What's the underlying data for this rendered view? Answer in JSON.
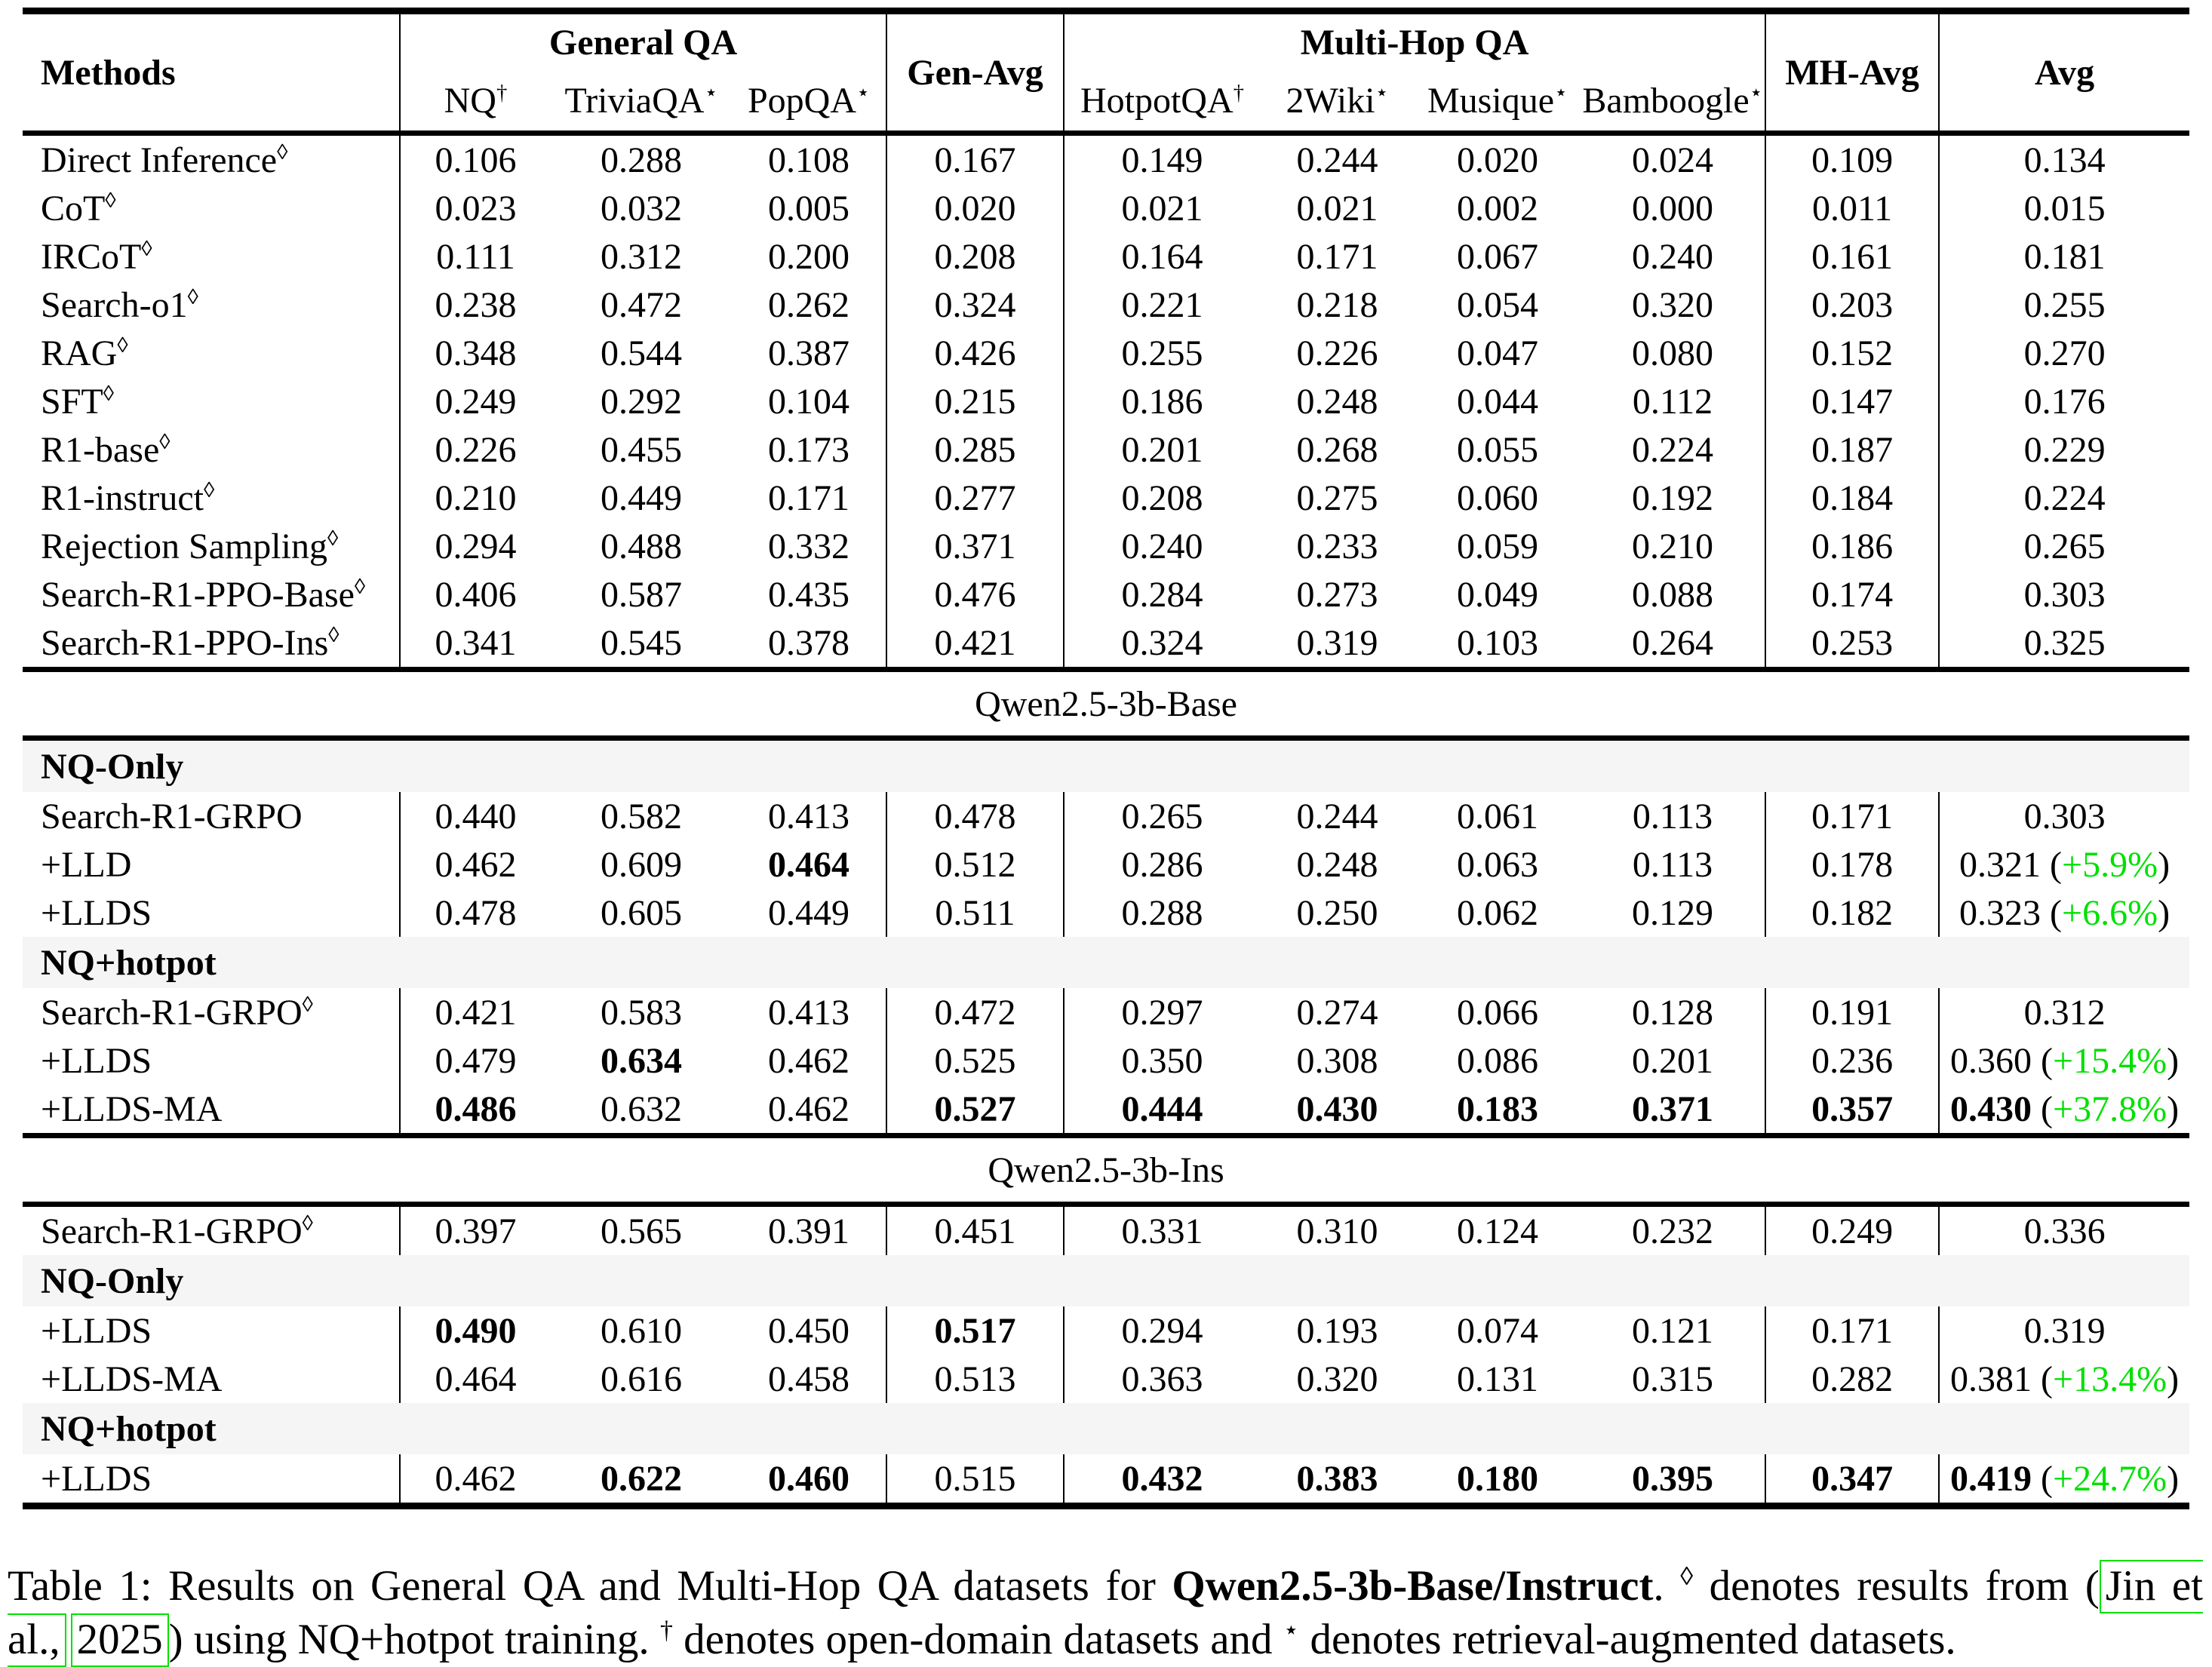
{
  "colors": {
    "delta_green": "#00e000",
    "citation_green": "#00e000",
    "row_shade": "#f5f5f5"
  },
  "table": {
    "header": {
      "methods": "Methods",
      "general_qa": "General QA",
      "gen_avg": "Gen-Avg",
      "multi_hop": "Multi-Hop QA",
      "mh_avg": "MH-Avg",
      "avg": "Avg"
    },
    "columns": [
      {
        "label": "NQ",
        "sup": "†"
      },
      {
        "label": "TriviaQA",
        "sup": "⋆"
      },
      {
        "label": "PopQA",
        "sup": "⋆"
      },
      {
        "label": "HotpotQA",
        "sup": "†"
      },
      {
        "label": "2Wiki",
        "sup": "⋆"
      },
      {
        "label": "Musique",
        "sup": "⋆"
      },
      {
        "label": "Bamboogle",
        "sup": "⋆"
      }
    ],
    "rows": [
      {
        "type": "data",
        "label": "Direct Inference",
        "sup": "◊",
        "values": [
          "0.106",
          "0.288",
          "0.108",
          "0.167",
          "0.149",
          "0.244",
          "0.020",
          "0.024",
          "0.109",
          "0.134"
        ],
        "bold": [],
        "delta": null
      },
      {
        "type": "data",
        "label": "CoT",
        "sup": "◊",
        "values": [
          "0.023",
          "0.032",
          "0.005",
          "0.020",
          "0.021",
          "0.021",
          "0.002",
          "0.000",
          "0.011",
          "0.015"
        ],
        "bold": [],
        "delta": null
      },
      {
        "type": "data",
        "label": "IRCoT",
        "sup": "◊",
        "values": [
          "0.111",
          "0.312",
          "0.200",
          "0.208",
          "0.164",
          "0.171",
          "0.067",
          "0.240",
          "0.161",
          "0.181"
        ],
        "bold": [],
        "delta": null
      },
      {
        "type": "data",
        "label": "Search-o1",
        "sup": "◊",
        "values": [
          "0.238",
          "0.472",
          "0.262",
          "0.324",
          "0.221",
          "0.218",
          "0.054",
          "0.320",
          "0.203",
          "0.255"
        ],
        "bold": [],
        "delta": null
      },
      {
        "type": "data",
        "label": "RAG",
        "sup": "◊",
        "values": [
          "0.348",
          "0.544",
          "0.387",
          "0.426",
          "0.255",
          "0.226",
          "0.047",
          "0.080",
          "0.152",
          "0.270"
        ],
        "bold": [],
        "delta": null
      },
      {
        "type": "data",
        "label": "SFT",
        "sup": "◊",
        "values": [
          "0.249",
          "0.292",
          "0.104",
          "0.215",
          "0.186",
          "0.248",
          "0.044",
          "0.112",
          "0.147",
          "0.176"
        ],
        "bold": [],
        "delta": null
      },
      {
        "type": "data",
        "label": "R1-base",
        "sup": "◊",
        "values": [
          "0.226",
          "0.455",
          "0.173",
          "0.285",
          "0.201",
          "0.268",
          "0.055",
          "0.224",
          "0.187",
          "0.229"
        ],
        "bold": [],
        "delta": null
      },
      {
        "type": "data",
        "label": "R1-instruct",
        "sup": "◊",
        "values": [
          "0.210",
          "0.449",
          "0.171",
          "0.277",
          "0.208",
          "0.275",
          "0.060",
          "0.192",
          "0.184",
          "0.224"
        ],
        "bold": [],
        "delta": null
      },
      {
        "type": "data",
        "label": "Rejection Sampling",
        "sup": "◊",
        "values": [
          "0.294",
          "0.488",
          "0.332",
          "0.371",
          "0.240",
          "0.233",
          "0.059",
          "0.210",
          "0.186",
          "0.265"
        ],
        "bold": [],
        "delta": null
      },
      {
        "type": "data",
        "label": "Search-R1-PPO-Base",
        "sup": "◊",
        "values": [
          "0.406",
          "0.587",
          "0.435",
          "0.476",
          "0.284",
          "0.273",
          "0.049",
          "0.088",
          "0.174",
          "0.303"
        ],
        "bold": [],
        "delta": null
      },
      {
        "type": "data",
        "label": "Search-R1-PPO-Ins",
        "sup": "◊",
        "values": [
          "0.341",
          "0.545",
          "0.378",
          "0.421",
          "0.324",
          "0.319",
          "0.103",
          "0.264",
          "0.253",
          "0.325"
        ],
        "bold": [],
        "delta": null
      },
      {
        "type": "band",
        "label": "Qwen2.5-3b-Base"
      },
      {
        "type": "subheader",
        "label": "NQ-Only"
      },
      {
        "type": "data",
        "label": "Search-R1-GRPO",
        "sup": null,
        "values": [
          "0.440",
          "0.582",
          "0.413",
          "0.478",
          "0.265",
          "0.244",
          "0.061",
          "0.113",
          "0.171",
          "0.303"
        ],
        "bold": [],
        "delta": null
      },
      {
        "type": "data",
        "label": "+LLD",
        "sup": null,
        "values": [
          "0.462",
          "0.609",
          "0.464",
          "0.512",
          "0.286",
          "0.248",
          "0.063",
          "0.113",
          "0.178",
          "0.321"
        ],
        "bold": [
          2
        ],
        "delta": "+5.9%"
      },
      {
        "type": "data",
        "label": "+LLDS",
        "sup": null,
        "values": [
          "0.478",
          "0.605",
          "0.449",
          "0.511",
          "0.288",
          "0.250",
          "0.062",
          "0.129",
          "0.182",
          "0.323"
        ],
        "bold": [],
        "delta": "+6.6%"
      },
      {
        "type": "subheader",
        "label": "NQ+hotpot"
      },
      {
        "type": "data",
        "label": "Search-R1-GRPO",
        "sup": "◊",
        "values": [
          "0.421",
          "0.583",
          "0.413",
          "0.472",
          "0.297",
          "0.274",
          "0.066",
          "0.128",
          "0.191",
          "0.312"
        ],
        "bold": [],
        "delta": null
      },
      {
        "type": "data",
        "label": "+LLDS",
        "sup": null,
        "values": [
          "0.479",
          "0.634",
          "0.462",
          "0.525",
          "0.350",
          "0.308",
          "0.086",
          "0.201",
          "0.236",
          "0.360"
        ],
        "bold": [
          1
        ],
        "delta": "+15.4%"
      },
      {
        "type": "data",
        "label": "+LLDS-MA",
        "sup": null,
        "values": [
          "0.486",
          "0.632",
          "0.462",
          "0.527",
          "0.444",
          "0.430",
          "0.183",
          "0.371",
          "0.357",
          "0.430"
        ],
        "bold": [
          0,
          3,
          4,
          5,
          6,
          7,
          8,
          9
        ],
        "delta": "+37.8%"
      },
      {
        "type": "band",
        "label": "Qwen2.5-3b-Ins"
      },
      {
        "type": "data",
        "label": "Search-R1-GRPO",
        "sup": "◊",
        "values": [
          "0.397",
          "0.565",
          "0.391",
          "0.451",
          "0.331",
          "0.310",
          "0.124",
          "0.232",
          "0.249",
          "0.336"
        ],
        "bold": [],
        "delta": null
      },
      {
        "type": "subheader",
        "label": "NQ-Only"
      },
      {
        "type": "data",
        "label": "+LLDS",
        "sup": null,
        "values": [
          "0.490",
          "0.610",
          "0.450",
          "0.517",
          "0.294",
          "0.193",
          "0.074",
          "0.121",
          "0.171",
          "0.319"
        ],
        "bold": [
          0,
          3
        ],
        "delta": null
      },
      {
        "type": "data",
        "label": "+LLDS-MA",
        "sup": null,
        "values": [
          "0.464",
          "0.616",
          "0.458",
          "0.513",
          "0.363",
          "0.320",
          "0.131",
          "0.315",
          "0.282",
          "0.381"
        ],
        "bold": [],
        "delta": "+13.4%"
      },
      {
        "type": "subheader",
        "label": "NQ+hotpot"
      },
      {
        "type": "data",
        "label": "+LLDS",
        "sup": null,
        "values": [
          "0.462",
          "0.622",
          "0.460",
          "0.515",
          "0.432",
          "0.383",
          "0.180",
          "0.395",
          "0.347",
          "0.419"
        ],
        "bold": [
          1,
          2,
          4,
          5,
          6,
          7,
          8,
          9
        ],
        "delta": "+24.7%"
      }
    ]
  },
  "caption": {
    "prefix": "Table 1: Results on General QA and Multi-Hop QA datasets for ",
    "model_bold": "Qwen2.5-3b-Base/Instruct",
    "after_model": ". ",
    "diamond": "◊",
    "mid1": " denotes results from (",
    "cite1": "Jin et al.,",
    "cite2": "2025",
    "mid2": ") using NQ+hotpot training. ",
    "dagger": "†",
    "mid3": " denotes open-domain datasets and ",
    "star": "⋆",
    "suffix": " denotes retrieval-augmented datasets."
  }
}
